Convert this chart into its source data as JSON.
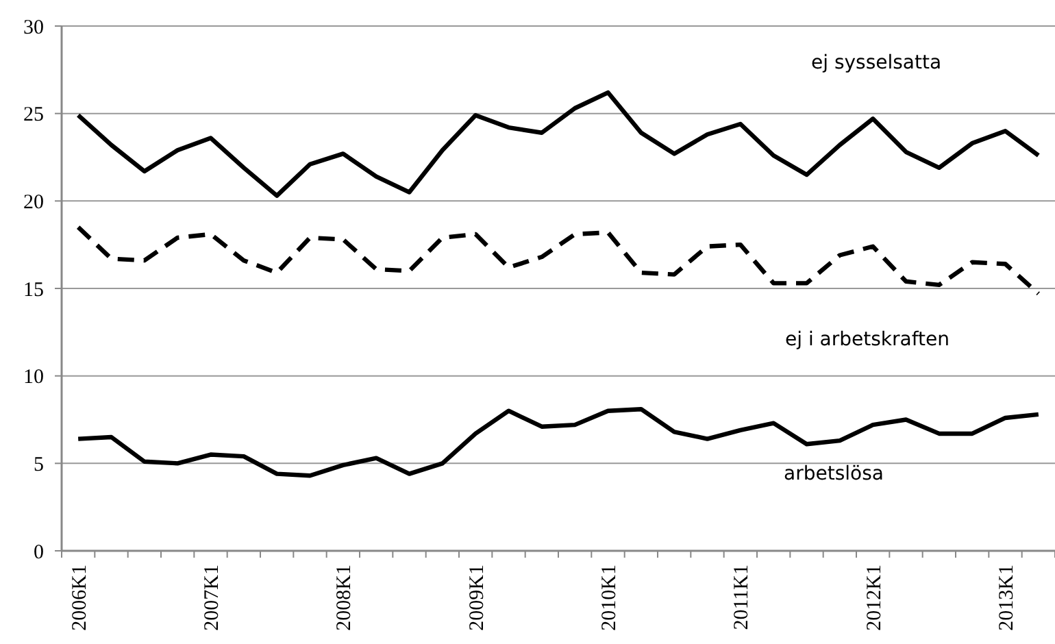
{
  "chart_data": {
    "type": "line",
    "categories": [
      "2006K1",
      null,
      null,
      null,
      "2007K1",
      null,
      null,
      null,
      "2008K1",
      null,
      null,
      null,
      "2009K1",
      null,
      null,
      null,
      "2010K1",
      null,
      null,
      null,
      "2011K1",
      null,
      null,
      null,
      "2012K1",
      null,
      null,
      null,
      "2013K1",
      null
    ],
    "ylim": [
      0,
      30
    ],
    "yticks": [
      0,
      5,
      10,
      15,
      20,
      25,
      30
    ],
    "grid": "y",
    "legend": false,
    "marker": "none",
    "series": [
      {
        "name": "ej sysselsatta",
        "color": "#000000",
        "line_style": "solid",
        "values": [
          24.9,
          23.2,
          21.7,
          22.9,
          23.6,
          21.9,
          20.3,
          22.1,
          22.7,
          21.4,
          20.5,
          22.9,
          24.9,
          24.2,
          23.9,
          25.3,
          26.2,
          23.9,
          22.7,
          23.8,
          24.4,
          22.6,
          21.5,
          23.2,
          24.7,
          22.8,
          21.9,
          23.3,
          24.0,
          22.6
        ]
      },
      {
        "name": "ej i arbetskraften",
        "color": "#000000",
        "line_style": "dashed",
        "values": [
          18.5,
          16.7,
          16.6,
          17.9,
          18.1,
          16.6,
          15.9,
          17.9,
          17.8,
          16.1,
          16.0,
          17.9,
          18.1,
          16.2,
          16.8,
          18.1,
          18.2,
          15.9,
          15.8,
          17.4,
          17.5,
          15.3,
          15.3,
          16.9,
          17.4,
          15.4,
          15.2,
          16.5,
          16.4,
          14.7
        ]
      },
      {
        "name": "arbetslösa",
        "color": "#000000",
        "line_style": "solid",
        "values": [
          6.4,
          6.5,
          5.1,
          5.0,
          5.5,
          5.4,
          4.4,
          4.3,
          4.9,
          5.3,
          4.4,
          5.0,
          6.7,
          8.0,
          7.1,
          7.2,
          8.0,
          8.1,
          6.8,
          6.4,
          6.9,
          7.3,
          6.1,
          6.3,
          7.2,
          7.5,
          6.7,
          6.7,
          7.6,
          7.8
        ]
      }
    ]
  }
}
